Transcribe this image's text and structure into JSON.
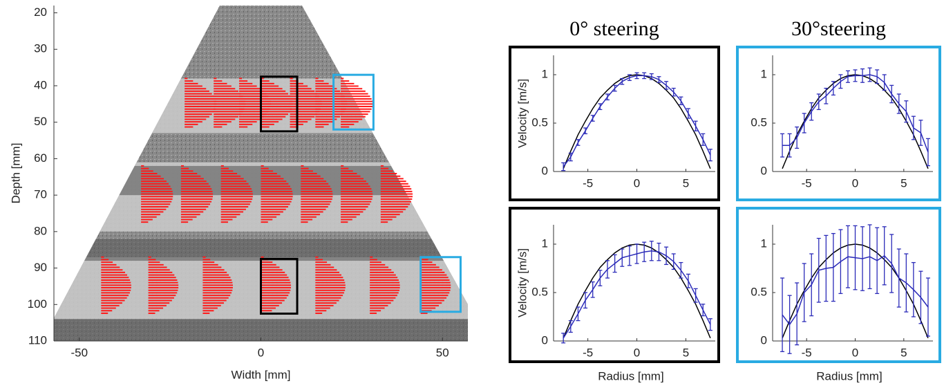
{
  "chart_data": [
    {
      "type": "image",
      "xlabel": "Width [mm]",
      "ylabel": "Depth [mm]",
      "xlim": [
        -57,
        57
      ],
      "ylim": [
        18,
        110
      ],
      "y_reversed": true,
      "xticks": [
        -50,
        0,
        50
      ],
      "yticks": [
        20,
        30,
        40,
        50,
        60,
        70,
        80,
        90,
        100,
        110
      ]
    },
    {
      "type": "line",
      "title": "0° steering",
      "ylabel": "Velocity [m/s]",
      "frame_color": "#000000",
      "xlim": [
        -8.5,
        8
      ],
      "ylim": [
        0,
        1.2
      ],
      "xticks": [
        -5,
        0,
        5
      ],
      "yticks": [
        0,
        0.5,
        1
      ],
      "x": [
        -7.5,
        -6.75,
        -6,
        -5.25,
        -4.5,
        -3.75,
        -3,
        -2.25,
        -1.5,
        -0.75,
        0,
        0.75,
        1.5,
        2.25,
        3,
        3.75,
        4.5,
        5.25,
        6,
        6.75,
        7.5
      ],
      "series": [
        {
          "color": "#000000",
          "values": [
            0.03,
            0.21,
            0.38,
            0.52,
            0.65,
            0.76,
            0.84,
            0.91,
            0.96,
            0.99,
            1,
            0.99,
            0.96,
            0.91,
            0.84,
            0.76,
            0.65,
            0.52,
            0.38,
            0.21,
            0.03
          ]
        },
        {
          "color": "#2a2ab8",
          "values": [
            0.05,
            0.15,
            0.3,
            0.42,
            0.55,
            0.67,
            0.77,
            0.86,
            0.93,
            0.97,
            0.99,
            0.99,
            0.98,
            0.95,
            0.89,
            0.82,
            0.73,
            0.6,
            0.47,
            0.33,
            0.17
          ],
          "errors": [
            0.04,
            0.04,
            0.03,
            0.03,
            0.03,
            0.03,
            0.03,
            0.03,
            0.03,
            0.03,
            0.03,
            0.03,
            0.03,
            0.03,
            0.04,
            0.04,
            0.04,
            0.05,
            0.05,
            0.06,
            0.06
          ]
        }
      ]
    },
    {
      "type": "line",
      "title": "30°steering",
      "frame_color": "#29abe2",
      "xlim": [
        -8.5,
        8
      ],
      "ylim": [
        0,
        1.2
      ],
      "xticks": [
        -5,
        0,
        5
      ],
      "yticks": [
        0,
        0.5,
        1
      ],
      "x": [
        -7.5,
        -6.75,
        -6,
        -5.25,
        -4.5,
        -3.75,
        -3,
        -2.25,
        -1.5,
        -0.75,
        0,
        0.75,
        1.5,
        2.25,
        3,
        3.75,
        4.5,
        5.25,
        6,
        6.75,
        7.5
      ],
      "series": [
        {
          "color": "#000000",
          "values": [
            0.03,
            0.21,
            0.38,
            0.52,
            0.65,
            0.76,
            0.84,
            0.91,
            0.96,
            0.99,
            1,
            0.99,
            0.96,
            0.91,
            0.84,
            0.76,
            0.65,
            0.52,
            0.38,
            0.21,
            0.03
          ]
        },
        {
          "color": "#2a2ab8",
          "values": [
            0.27,
            0.27,
            0.35,
            0.5,
            0.62,
            0.72,
            0.78,
            0.86,
            0.93,
            0.98,
            0.99,
            0.99,
            1,
            0.98,
            0.92,
            0.8,
            0.7,
            0.62,
            0.45,
            0.4,
            0.2
          ],
          "errors": [
            0.12,
            0.12,
            0.11,
            0.1,
            0.09,
            0.08,
            0.08,
            0.07,
            0.07,
            0.06,
            0.06,
            0.07,
            0.07,
            0.07,
            0.08,
            0.09,
            0.1,
            0.11,
            0.12,
            0.13,
            0.14
          ]
        }
      ]
    },
    {
      "type": "line",
      "ylabel": "Velocity [m/s]",
      "xlabel": "Radius [mm]",
      "frame_color": "#000000",
      "xlim": [
        -8.5,
        8
      ],
      "ylim": [
        0,
        1.2
      ],
      "xticks": [
        -5,
        0,
        5
      ],
      "yticks": [
        0,
        0.5,
        1
      ],
      "x": [
        -7.5,
        -6.75,
        -6,
        -5.25,
        -4.5,
        -3.75,
        -3,
        -2.25,
        -1.5,
        -0.75,
        0,
        0.75,
        1.5,
        2.25,
        3,
        3.75,
        4.5,
        5.25,
        6,
        6.75,
        7.5
      ],
      "series": [
        {
          "color": "#000000",
          "values": [
            0.03,
            0.21,
            0.38,
            0.52,
            0.65,
            0.76,
            0.84,
            0.91,
            0.96,
            0.99,
            1,
            0.99,
            0.96,
            0.91,
            0.84,
            0.76,
            0.65,
            0.52,
            0.38,
            0.21,
            0.03
          ]
        },
        {
          "color": "#2a2ab8",
          "values": [
            0.03,
            0.15,
            0.28,
            0.42,
            0.53,
            0.65,
            0.74,
            0.8,
            0.86,
            0.88,
            0.9,
            0.92,
            0.93,
            0.92,
            0.88,
            0.82,
            0.73,
            0.62,
            0.47,
            0.32,
            0.17
          ],
          "errors": [
            0.05,
            0.06,
            0.07,
            0.08,
            0.08,
            0.08,
            0.09,
            0.09,
            0.09,
            0.1,
            0.1,
            0.1,
            0.1,
            0.09,
            0.09,
            0.08,
            0.08,
            0.07,
            0.07,
            0.06,
            0.06
          ]
        }
      ]
    },
    {
      "type": "line",
      "xlabel": "Radius [mm]",
      "frame_color": "#29abe2",
      "xlim": [
        -8.5,
        8
      ],
      "ylim": [
        0,
        1.2
      ],
      "xticks": [
        -5,
        0,
        5
      ],
      "yticks": [
        0,
        0.5,
        1
      ],
      "x": [
        -7.5,
        -6.75,
        -6,
        -5.25,
        -4.5,
        -3.75,
        -3,
        -2.25,
        -1.5,
        -0.75,
        0,
        0.75,
        1.5,
        2.25,
        3,
        3.75,
        4.5,
        5.25,
        6,
        6.75,
        7.5
      ],
      "series": [
        {
          "color": "#000000",
          "values": [
            0.03,
            0.21,
            0.38,
            0.52,
            0.65,
            0.76,
            0.84,
            0.91,
            0.96,
            0.99,
            1,
            0.99,
            0.96,
            0.91,
            0.84,
            0.76,
            0.65,
            0.52,
            0.38,
            0.21,
            0.03
          ]
        },
        {
          "color": "#2a2ab8",
          "values": [
            0.27,
            0.17,
            0.28,
            0.5,
            0.58,
            0.73,
            0.75,
            0.76,
            0.82,
            0.87,
            0.86,
            0.85,
            0.87,
            0.83,
            0.88,
            0.8,
            0.65,
            0.6,
            0.53,
            0.45,
            0.35
          ],
          "errors": [
            0.38,
            0.3,
            0.32,
            0.3,
            0.32,
            0.33,
            0.34,
            0.35,
            0.33,
            0.32,
            0.33,
            0.33,
            0.33,
            0.34,
            0.3,
            0.3,
            0.3,
            0.3,
            0.28,
            0.27,
            0.3
          ]
        }
      ]
    }
  ]
}
